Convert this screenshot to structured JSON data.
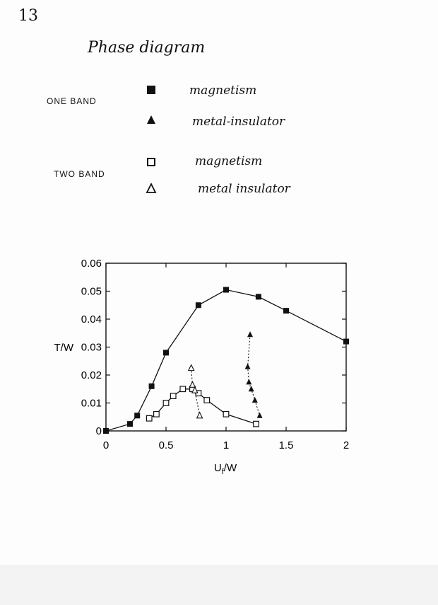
{
  "page": {
    "page_number": "13",
    "title": "Phase diagram",
    "legend": {
      "one_band_label": "ONE BAND",
      "two_band_label": "TWO BAND",
      "one_band_magnetism": "magnetism",
      "one_band_mi": "metal-insulator",
      "two_band_magnetism": "magnetism",
      "two_band_mi": "metal insulator"
    }
  },
  "chart_data": {
    "type": "line",
    "title": "",
    "xlabel": "Uf/W",
    "ylabel": "T/W",
    "xlim": [
      0,
      2
    ],
    "ylim": [
      0,
      0.06
    ],
    "x_ticks": [
      "0",
      "0.5",
      "1",
      "1.5",
      "2"
    ],
    "y_ticks": [
      "0",
      "0.01",
      "0.02",
      "0.03",
      "0.04",
      "0.05",
      "0.06"
    ],
    "grid": false,
    "series": [
      {
        "key": "one_band_magnetism",
        "marker": "filled-square",
        "line": "solid",
        "color": "#111111",
        "points": [
          [
            0.0,
            0.0
          ],
          [
            0.2,
            0.0025
          ],
          [
            0.26,
            0.0055
          ],
          [
            0.38,
            0.016
          ],
          [
            0.5,
            0.028
          ],
          [
            0.77,
            0.045
          ],
          [
            1.0,
            0.0505
          ],
          [
            1.27,
            0.048
          ],
          [
            1.5,
            0.043
          ],
          [
            2.0,
            0.032
          ]
        ]
      },
      {
        "key": "one_band_metal_insulator",
        "marker": "filled-triangle",
        "line": "dotted",
        "color": "#111111",
        "points": [
          [
            1.2,
            0.0345
          ],
          [
            1.18,
            0.023
          ],
          [
            1.19,
            0.0175
          ],
          [
            1.21,
            0.015
          ],
          [
            1.24,
            0.011
          ],
          [
            1.28,
            0.0055
          ]
        ]
      },
      {
        "key": "two_band_magnetism",
        "marker": "open-square",
        "line": "solid",
        "color": "#111111",
        "points": [
          [
            0.36,
            0.0045
          ],
          [
            0.42,
            0.006
          ],
          [
            0.5,
            0.01
          ],
          [
            0.56,
            0.0125
          ],
          [
            0.64,
            0.015
          ],
          [
            0.72,
            0.015
          ],
          [
            0.77,
            0.0135
          ],
          [
            0.84,
            0.011
          ],
          [
            1.0,
            0.006
          ],
          [
            1.25,
            0.0025
          ]
        ]
      },
      {
        "key": "two_band_metal_insulator",
        "marker": "open-triangle",
        "line": "dotted",
        "color": "#111111",
        "points": [
          [
            0.71,
            0.0225
          ],
          [
            0.72,
            0.0165
          ],
          [
            0.74,
            0.0145
          ],
          [
            0.78,
            0.0055
          ]
        ]
      }
    ]
  }
}
